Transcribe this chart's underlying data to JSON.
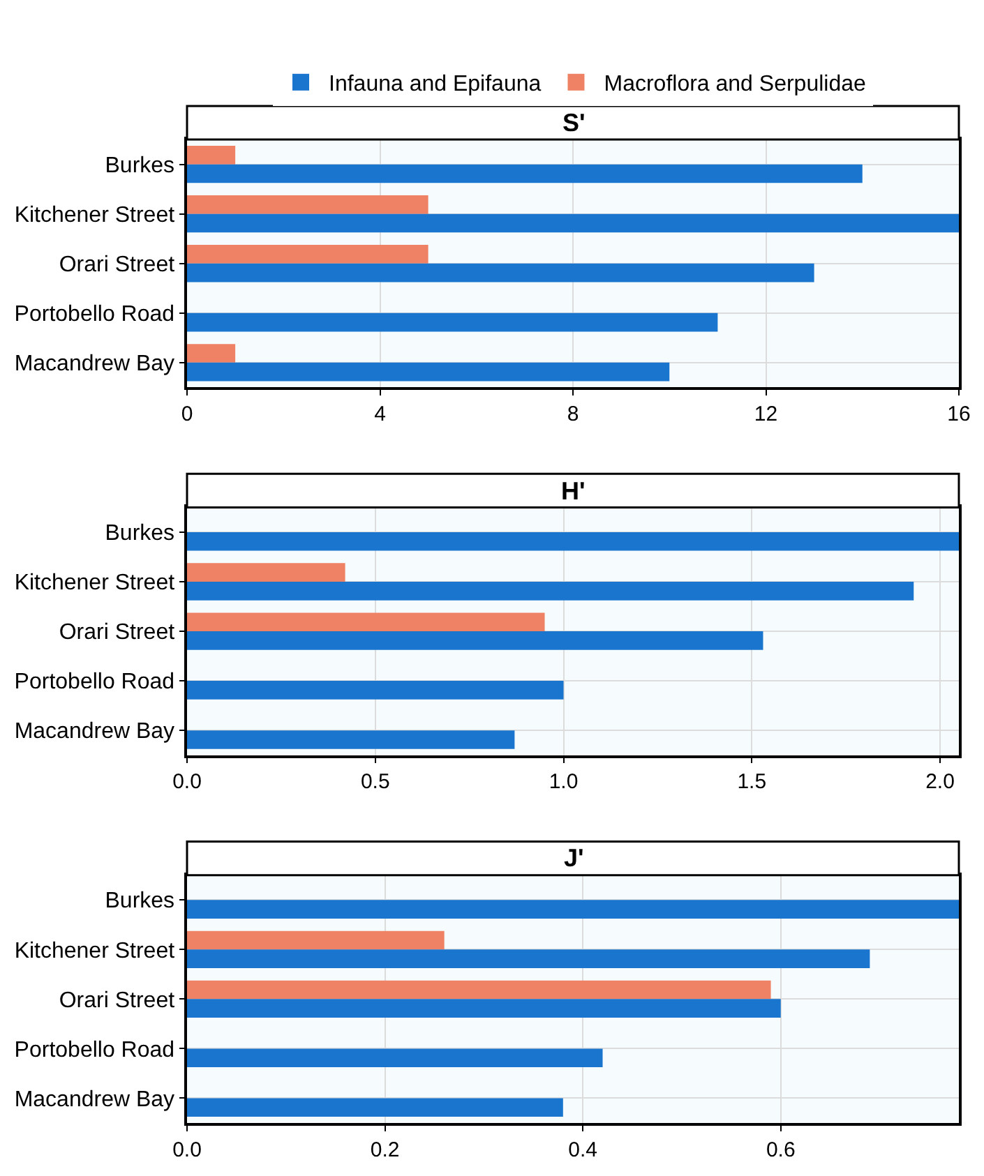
{
  "chart_data": [
    {
      "type": "bar",
      "orientation": "horizontal",
      "title": "S'",
      "categories": [
        "Burkes",
        "Kitchener Street",
        "Orari Street",
        "Portobello Road",
        "Macandrew Bay"
      ],
      "series": [
        {
          "name": "Infauna and Epifauna",
          "color": "#1a75cf",
          "values": [
            14,
            16,
            13,
            11,
            10
          ]
        },
        {
          "name": "Macroflora and Serpulidae",
          "color": "#ef8264",
          "values": [
            1,
            5,
            5,
            null,
            1
          ]
        }
      ],
      "xlim": [
        0,
        16
      ],
      "xticks": [
        0,
        4,
        8,
        12,
        16
      ],
      "grid": true,
      "legend": "top"
    },
    {
      "type": "bar",
      "orientation": "horizontal",
      "title": "H'",
      "categories": [
        "Burkes",
        "Kitchener Street",
        "Orari Street",
        "Portobello Road",
        "Macandrew Bay"
      ],
      "series": [
        {
          "color": "#1a75cf",
          "values": [
            2.05,
            1.93,
            1.53,
            1.0,
            0.87
          ]
        },
        {
          "color": "#ef8264",
          "values": [
            null,
            0.42,
            0.95,
            null,
            null
          ]
        }
      ],
      "xlim": [
        0,
        2.05
      ],
      "xticks": [
        {
          "value": 0,
          "label": "0.0"
        },
        0.5,
        {
          "value": 1,
          "label": "1.0"
        },
        1.5,
        {
          "value": 2,
          "label": "2.0"
        }
      ],
      "grid": true
    },
    {
      "type": "bar",
      "orientation": "horizontal",
      "title": "J'",
      "categories": [
        "Burkes",
        "Kitchener Street",
        "Orari Street",
        "Portobello Road",
        "Macandrew Bay"
      ],
      "series": [
        {
          "color": "#1a75cf",
          "values": [
            0.78,
            0.69,
            0.6,
            0.42,
            0.38
          ]
        },
        {
          "color": "#ef8264",
          "values": [
            null,
            0.26,
            0.59,
            null,
            null
          ]
        }
      ],
      "xlim": [
        0,
        0.78
      ],
      "xticks": [
        {
          "value": 0,
          "label": "0.0"
        },
        0.2,
        0.4,
        0.6
      ],
      "grid": true
    }
  ]
}
